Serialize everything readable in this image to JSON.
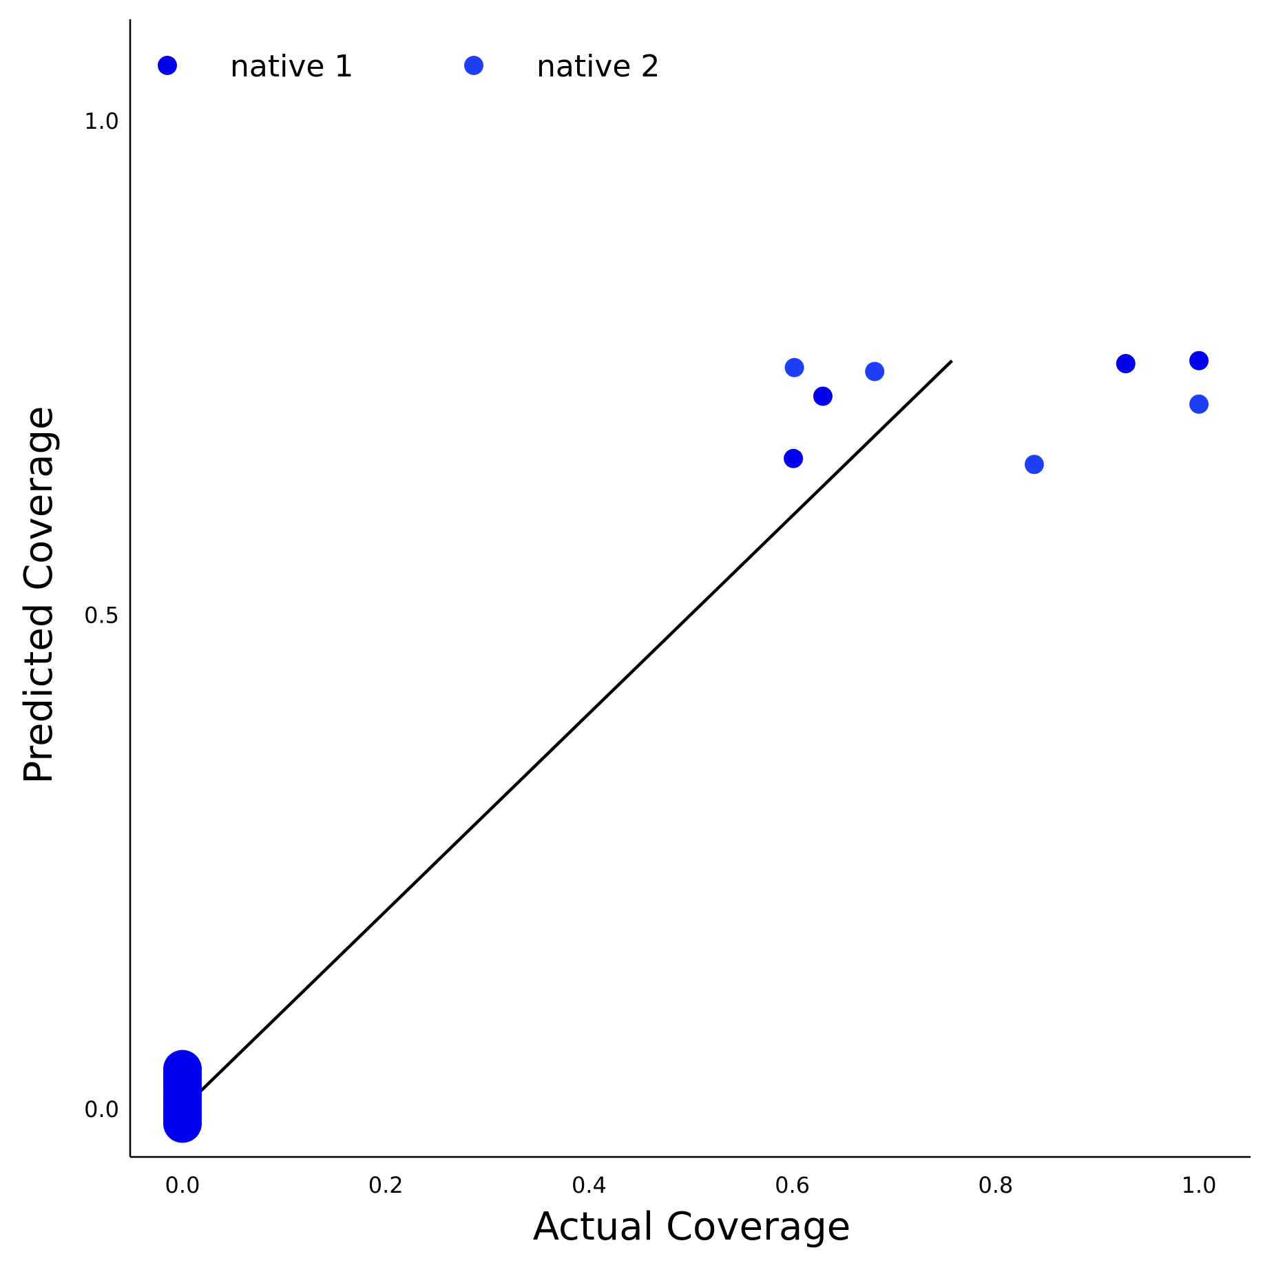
{
  "chart_data": {
    "type": "scatter",
    "title": "",
    "xlabel": "Actual Coverage",
    "ylabel": "Predicted Coverage",
    "xlim": [
      -0.05,
      1.05
    ],
    "ylim": [
      -0.05,
      1.1
    ],
    "x_ticks": [
      0.0,
      0.2,
      0.4,
      0.6,
      0.8,
      1.0
    ],
    "x_tick_labels": [
      "0.0",
      "0.2",
      "0.4",
      "0.6",
      "0.8",
      "1.0"
    ],
    "y_ticks": [
      0.0,
      0.5,
      1.0
    ],
    "y_tick_labels": [
      "0.0",
      "0.5",
      "1.0"
    ],
    "grid": false,
    "legend_position": "top-left",
    "reference_line": {
      "x": [
        0.0,
        0.757
      ],
      "y": [
        0.0,
        0.757
      ],
      "color": "#000000"
    },
    "series": [
      {
        "name": "native 1",
        "color": "#0000ee",
        "points": [
          {
            "x": 0.0,
            "y": 0.0
          },
          {
            "x": 0.0,
            "y": 0.005
          },
          {
            "x": 0.0,
            "y": 0.01
          },
          {
            "x": 0.0,
            "y": 0.015
          },
          {
            "x": 0.0,
            "y": 0.02
          },
          {
            "x": 0.0,
            "y": 0.025
          },
          {
            "x": 0.0,
            "y": 0.03
          },
          {
            "x": 0.0,
            "y": 0.035
          },
          {
            "x": 0.0,
            "y": 0.04
          },
          {
            "x": 0.0,
            "y": -0.005
          },
          {
            "x": 0.0,
            "y": -0.01
          },
          {
            "x": 0.0,
            "y": -0.015
          },
          {
            "x": 0.601,
            "y": 0.658
          },
          {
            "x": 0.63,
            "y": 0.721
          },
          {
            "x": 0.928,
            "y": 0.754
          },
          {
            "x": 1.0,
            "y": 0.757
          }
        ]
      },
      {
        "name": "native 2",
        "color": "#1e3ff5",
        "points": [
          {
            "x": 0.602,
            "y": 0.75
          },
          {
            "x": 0.681,
            "y": 0.746
          },
          {
            "x": 0.838,
            "y": 0.652
          },
          {
            "x": 1.0,
            "y": 0.713
          }
        ]
      }
    ]
  }
}
